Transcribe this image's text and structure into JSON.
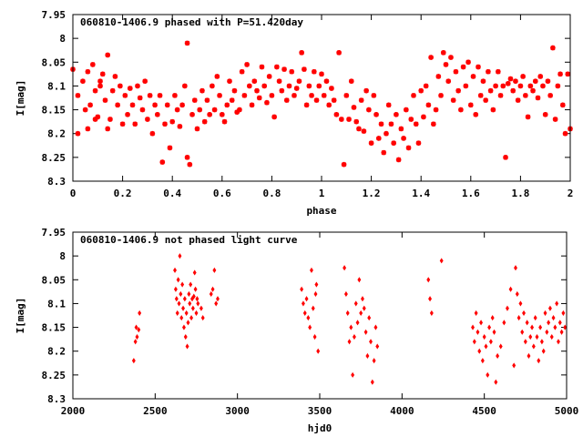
{
  "chart_data": [
    {
      "type": "scatter",
      "title": "060810-1406.9 phased with P=51.420day",
      "xlabel": "phase",
      "ylabel": "I[mag]",
      "xlim": [
        0,
        2
      ],
      "ylim": [
        8.3,
        7.95
      ],
      "y_inverted": true,
      "xticks": [
        0,
        0.2,
        0.4,
        0.6,
        0.8,
        1,
        1.2,
        1.4,
        1.6,
        1.8,
        2
      ],
      "xtick_labels": [
        "0",
        "0.2",
        "0.4",
        "0.6",
        "0.8",
        "1",
        "1.2",
        "1.4",
        "1.6",
        "1.8",
        "2"
      ],
      "yticks": [
        7.95,
        8.0,
        8.05,
        8.1,
        8.15,
        8.2,
        8.25,
        8.3
      ],
      "ytick_labels": [
        "7.95",
        "8",
        "8.05",
        "8.1",
        "8.15",
        "8.2",
        "8.25",
        "8.3"
      ],
      "grid": false,
      "marker": "star",
      "color": "#ff0000",
      "points": [
        [
          0.0,
          8.065
        ],
        [
          0.02,
          8.12
        ],
        [
          0.02,
          8.2
        ],
        [
          0.04,
          8.09
        ],
        [
          0.05,
          8.15
        ],
        [
          0.06,
          8.19
        ],
        [
          0.06,
          8.07
        ],
        [
          0.07,
          8.14
        ],
        [
          0.08,
          8.055
        ],
        [
          0.09,
          8.11
        ],
        [
          0.09,
          8.17
        ],
        [
          0.1,
          8.165
        ],
        [
          0.11,
          8.09
        ],
        [
          0.11,
          8.1
        ],
        [
          0.12,
          8.075
        ],
        [
          0.13,
          8.13
        ],
        [
          0.14,
          8.035
        ],
        [
          0.14,
          8.19
        ],
        [
          0.15,
          8.17
        ],
        [
          0.16,
          8.11
        ],
        [
          0.17,
          8.08
        ],
        [
          0.18,
          8.14
        ],
        [
          0.19,
          8.1
        ],
        [
          0.2,
          8.18
        ],
        [
          0.21,
          8.12
        ],
        [
          0.22,
          8.16
        ],
        [
          0.23,
          8.105
        ],
        [
          0.24,
          8.14
        ],
        [
          0.25,
          8.18
        ],
        [
          0.26,
          8.1
        ],
        [
          0.27,
          8.125
        ],
        [
          0.28,
          8.15
        ],
        [
          0.29,
          8.09
        ],
        [
          0.3,
          8.17
        ],
        [
          0.31,
          8.12
        ],
        [
          0.32,
          8.2
        ],
        [
          0.33,
          8.14
        ],
        [
          0.34,
          8.16
        ],
        [
          0.35,
          8.12
        ],
        [
          0.36,
          8.26
        ],
        [
          0.37,
          8.18
        ],
        [
          0.38,
          8.14
        ],
        [
          0.39,
          8.23
        ],
        [
          0.4,
          8.175
        ],
        [
          0.41,
          8.12
        ],
        [
          0.42,
          8.15
        ],
        [
          0.43,
          8.185
        ],
        [
          0.44,
          8.14
        ],
        [
          0.45,
          8.1
        ],
        [
          0.46,
          8.01
        ],
        [
          0.46,
          8.25
        ],
        [
          0.47,
          8.265
        ],
        [
          0.48,
          8.16
        ],
        [
          0.49,
          8.13
        ],
        [
          0.5,
          8.19
        ],
        [
          0.51,
          8.15
        ],
        [
          0.52,
          8.11
        ],
        [
          0.53,
          8.175
        ],
        [
          0.54,
          8.13
        ],
        [
          0.55,
          8.16
        ],
        [
          0.56,
          8.1
        ],
        [
          0.57,
          8.15
        ],
        [
          0.58,
          8.08
        ],
        [
          0.59,
          8.12
        ],
        [
          0.6,
          8.16
        ],
        [
          0.61,
          8.175
        ],
        [
          0.62,
          8.14
        ],
        [
          0.63,
          8.09
        ],
        [
          0.64,
          8.13
        ],
        [
          0.65,
          8.11
        ],
        [
          0.66,
          8.155
        ],
        [
          0.67,
          8.15
        ],
        [
          0.68,
          8.07
        ],
        [
          0.69,
          8.12
        ],
        [
          0.7,
          8.055
        ],
        [
          0.71,
          8.1
        ],
        [
          0.72,
          8.14
        ],
        [
          0.73,
          8.09
        ],
        [
          0.74,
          8.11
        ],
        [
          0.75,
          8.125
        ],
        [
          0.76,
          8.06
        ],
        [
          0.77,
          8.1
        ],
        [
          0.78,
          8.135
        ],
        [
          0.79,
          8.08
        ],
        [
          0.8,
          8.12
        ],
        [
          0.81,
          8.165
        ],
        [
          0.82,
          8.06
        ],
        [
          0.83,
          8.09
        ],
        [
          0.84,
          8.11
        ],
        [
          0.85,
          8.065
        ],
        [
          0.86,
          8.13
        ],
        [
          0.87,
          8.1
        ],
        [
          0.88,
          8.07
        ],
        [
          0.89,
          8.12
        ],
        [
          0.9,
          8.105
        ],
        [
          0.91,
          8.09
        ],
        [
          0.92,
          8.03
        ],
        [
          0.93,
          8.065
        ],
        [
          0.94,
          8.14
        ],
        [
          0.95,
          8.1
        ],
        [
          0.96,
          8.12
        ],
        [
          0.97,
          8.07
        ],
        [
          0.98,
          8.13
        ],
        [
          0.99,
          8.1
        ],
        [
          1.0,
          8.075
        ],
        [
          1.01,
          8.12
        ],
        [
          1.02,
          8.09
        ],
        [
          1.03,
          8.14
        ],
        [
          1.04,
          8.105
        ],
        [
          1.05,
          8.13
        ],
        [
          1.06,
          8.16
        ],
        [
          1.07,
          8.03
        ],
        [
          1.08,
          8.17
        ],
        [
          1.09,
          8.265
        ],
        [
          1.1,
          8.12
        ],
        [
          1.11,
          8.17
        ],
        [
          1.12,
          8.09
        ],
        [
          1.13,
          8.145
        ],
        [
          1.14,
          8.175
        ],
        [
          1.15,
          8.19
        ],
        [
          1.16,
          8.13
        ],
        [
          1.17,
          8.195
        ],
        [
          1.18,
          8.11
        ],
        [
          1.19,
          8.15
        ],
        [
          1.2,
          8.22
        ],
        [
          1.21,
          8.12
        ],
        [
          1.22,
          8.16
        ],
        [
          1.23,
          8.21
        ],
        [
          1.24,
          8.18
        ],
        [
          1.25,
          8.24
        ],
        [
          1.26,
          8.2
        ],
        [
          1.27,
          8.14
        ],
        [
          1.28,
          8.18
        ],
        [
          1.29,
          8.22
        ],
        [
          1.3,
          8.16
        ],
        [
          1.31,
          8.255
        ],
        [
          1.32,
          8.19
        ],
        [
          1.33,
          8.21
        ],
        [
          1.34,
          8.15
        ],
        [
          1.35,
          8.23
        ],
        [
          1.36,
          8.17
        ],
        [
          1.37,
          8.12
        ],
        [
          1.38,
          8.18
        ],
        [
          1.39,
          8.22
        ],
        [
          1.4,
          8.11
        ],
        [
          1.41,
          8.165
        ],
        [
          1.42,
          8.1
        ],
        [
          1.43,
          8.14
        ],
        [
          1.44,
          8.04
        ],
        [
          1.45,
          8.18
        ],
        [
          1.46,
          8.15
        ],
        [
          1.47,
          8.08
        ],
        [
          1.48,
          8.12
        ],
        [
          1.49,
          8.03
        ],
        [
          1.5,
          8.055
        ],
        [
          1.51,
          8.09
        ],
        [
          1.52,
          8.04
        ],
        [
          1.53,
          8.13
        ],
        [
          1.54,
          8.07
        ],
        [
          1.55,
          8.11
        ],
        [
          1.56,
          8.15
        ],
        [
          1.57,
          8.06
        ],
        [
          1.58,
          8.1
        ],
        [
          1.59,
          8.05
        ],
        [
          1.6,
          8.14
        ],
        [
          1.61,
          8.08
        ],
        [
          1.62,
          8.16
        ],
        [
          1.63,
          8.06
        ],
        [
          1.64,
          8.12
        ],
        [
          1.65,
          8.09
        ],
        [
          1.66,
          8.13
        ],
        [
          1.67,
          8.07
        ],
        [
          1.68,
          8.11
        ],
        [
          1.69,
          8.15
        ],
        [
          1.7,
          8.1
        ],
        [
          1.71,
          8.07
        ],
        [
          1.72,
          8.12
        ],
        [
          1.73,
          8.1
        ],
        [
          1.74,
          8.25
        ],
        [
          1.75,
          8.095
        ],
        [
          1.76,
          8.085
        ],
        [
          1.77,
          8.11
        ],
        [
          1.78,
          8.09
        ],
        [
          1.79,
          8.13
        ],
        [
          1.8,
          8.1
        ],
        [
          1.81,
          8.08
        ],
        [
          1.82,
          8.12
        ],
        [
          1.83,
          8.165
        ],
        [
          1.84,
          8.1
        ],
        [
          1.85,
          8.11
        ],
        [
          1.86,
          8.09
        ],
        [
          1.87,
          8.125
        ],
        [
          1.88,
          8.08
        ],
        [
          1.89,
          8.1
        ],
        [
          1.9,
          8.16
        ],
        [
          1.91,
          8.09
        ],
        [
          1.92,
          8.12
        ],
        [
          1.93,
          8.02
        ],
        [
          1.94,
          8.17
        ],
        [
          1.95,
          8.1
        ],
        [
          1.96,
          8.075
        ],
        [
          1.97,
          8.14
        ],
        [
          1.98,
          8.2
        ],
        [
          1.99,
          8.075
        ],
        [
          2.0,
          8.19
        ]
      ]
    },
    {
      "type": "scatter",
      "title": "060810-1406.9 not phased light curve",
      "xlabel": "hjd0",
      "ylabel": "I[mag]",
      "xlim": [
        2000,
        5000
      ],
      "ylim": [
        8.3,
        7.95
      ],
      "y_inverted": true,
      "xticks": [
        2000,
        2500,
        3000,
        3500,
        4000,
        4500,
        5000
      ],
      "xtick_labels": [
        "2000",
        "2500",
        "3000",
        "3500",
        "4000",
        "4500",
        "5000"
      ],
      "yticks": [
        7.95,
        8.0,
        8.05,
        8.1,
        8.15,
        8.2,
        8.25,
        8.3
      ],
      "ytick_labels": [
        "7.95",
        "8",
        "8.05",
        "8.1",
        "8.15",
        "8.2",
        "8.25",
        "8.3"
      ],
      "grid": false,
      "marker": "diamond",
      "color": "#ff0000",
      "points": [
        [
          2370,
          8.22
        ],
        [
          2380,
          8.18
        ],
        [
          2385,
          8.15
        ],
        [
          2390,
          8.17
        ],
        [
          2400,
          8.155
        ],
        [
          2405,
          8.12
        ],
        [
          2620,
          8.03
        ],
        [
          2625,
          8.07
        ],
        [
          2630,
          8.09
        ],
        [
          2635,
          8.12
        ],
        [
          2640,
          8.05
        ],
        [
          2645,
          8.1
        ],
        [
          2650,
          8.0
        ],
        [
          2655,
          8.08
        ],
        [
          2660,
          8.13
        ],
        [
          2665,
          8.06
        ],
        [
          2670,
          8.11
        ],
        [
          2675,
          8.15
        ],
        [
          2680,
          8.09
        ],
        [
          2685,
          8.17
        ],
        [
          2690,
          8.12
        ],
        [
          2695,
          8.19
        ],
        [
          2700,
          8.14
        ],
        [
          2705,
          8.08
        ],
        [
          2710,
          8.1
        ],
        [
          2715,
          8.06
        ],
        [
          2720,
          8.13
        ],
        [
          2725,
          8.09
        ],
        [
          2730,
          8.11
        ],
        [
          2735,
          8.085
        ],
        [
          2740,
          8.035
        ],
        [
          2745,
          8.07
        ],
        [
          2750,
          8.12
        ],
        [
          2755,
          8.09
        ],
        [
          2760,
          8.1
        ],
        [
          2780,
          8.11
        ],
        [
          2790,
          8.13
        ],
        [
          2840,
          8.08
        ],
        [
          2850,
          8.07
        ],
        [
          2860,
          8.03
        ],
        [
          2870,
          8.1
        ],
        [
          2880,
          8.09
        ],
        [
          3390,
          8.07
        ],
        [
          3400,
          8.1
        ],
        [
          3410,
          8.12
        ],
        [
          3420,
          8.09
        ],
        [
          3430,
          8.13
        ],
        [
          3440,
          8.15
        ],
        [
          3450,
          8.03
        ],
        [
          3460,
          8.11
        ],
        [
          3470,
          8.17
        ],
        [
          3475,
          8.08
        ],
        [
          3480,
          8.06
        ],
        [
          3490,
          8.2
        ],
        [
          3650,
          8.025
        ],
        [
          3660,
          8.08
        ],
        [
          3670,
          8.12
        ],
        [
          3680,
          8.18
        ],
        [
          3690,
          8.15
        ],
        [
          3700,
          8.25
        ],
        [
          3710,
          8.17
        ],
        [
          3720,
          8.1
        ],
        [
          3730,
          8.14
        ],
        [
          3740,
          8.05
        ],
        [
          3750,
          8.12
        ],
        [
          3760,
          8.09
        ],
        [
          3770,
          8.11
        ],
        [
          3780,
          8.16
        ],
        [
          3790,
          8.21
        ],
        [
          3800,
          8.13
        ],
        [
          3810,
          8.18
        ],
        [
          3820,
          8.265
        ],
        [
          3830,
          8.22
        ],
        [
          3840,
          8.15
        ],
        [
          3850,
          8.19
        ],
        [
          4160,
          8.05
        ],
        [
          4170,
          8.09
        ],
        [
          4180,
          8.12
        ],
        [
          4240,
          8.01
        ],
        [
          4430,
          8.15
        ],
        [
          4440,
          8.18
        ],
        [
          4450,
          8.12
        ],
        [
          4460,
          8.16
        ],
        [
          4470,
          8.2
        ],
        [
          4480,
          8.14
        ],
        [
          4490,
          8.22
        ],
        [
          4500,
          8.17
        ],
        [
          4510,
          8.19
        ],
        [
          4520,
          8.25
        ],
        [
          4530,
          8.15
        ],
        [
          4540,
          8.18
        ],
        [
          4550,
          8.13
        ],
        [
          4560,
          8.16
        ],
        [
          4570,
          8.265
        ],
        [
          4580,
          8.21
        ],
        [
          4600,
          8.19
        ],
        [
          4620,
          8.14
        ],
        [
          4640,
          8.11
        ],
        [
          4660,
          8.07
        ],
        [
          4680,
          8.23
        ],
        [
          4690,
          8.025
        ],
        [
          4700,
          8.08
        ],
        [
          4710,
          8.13
        ],
        [
          4720,
          8.1
        ],
        [
          4730,
          8.16
        ],
        [
          4740,
          8.12
        ],
        [
          4750,
          8.18
        ],
        [
          4760,
          8.14
        ],
        [
          4770,
          8.21
        ],
        [
          4780,
          8.17
        ],
        [
          4790,
          8.15
        ],
        [
          4800,
          8.19
        ],
        [
          4810,
          8.13
        ],
        [
          4820,
          8.17
        ],
        [
          4830,
          8.22
        ],
        [
          4840,
          8.15
        ],
        [
          4850,
          8.18
        ],
        [
          4860,
          8.2
        ],
        [
          4870,
          8.12
        ],
        [
          4880,
          8.16
        ],
        [
          4890,
          8.14
        ],
        [
          4900,
          8.11
        ],
        [
          4910,
          8.17
        ],
        [
          4920,
          8.13
        ],
        [
          4930,
          8.15
        ],
        [
          4940,
          8.1
        ],
        [
          4950,
          8.18
        ],
        [
          4960,
          8.14
        ],
        [
          4970,
          8.16
        ],
        [
          4980,
          8.12
        ],
        [
          4990,
          8.15
        ]
      ]
    }
  ]
}
